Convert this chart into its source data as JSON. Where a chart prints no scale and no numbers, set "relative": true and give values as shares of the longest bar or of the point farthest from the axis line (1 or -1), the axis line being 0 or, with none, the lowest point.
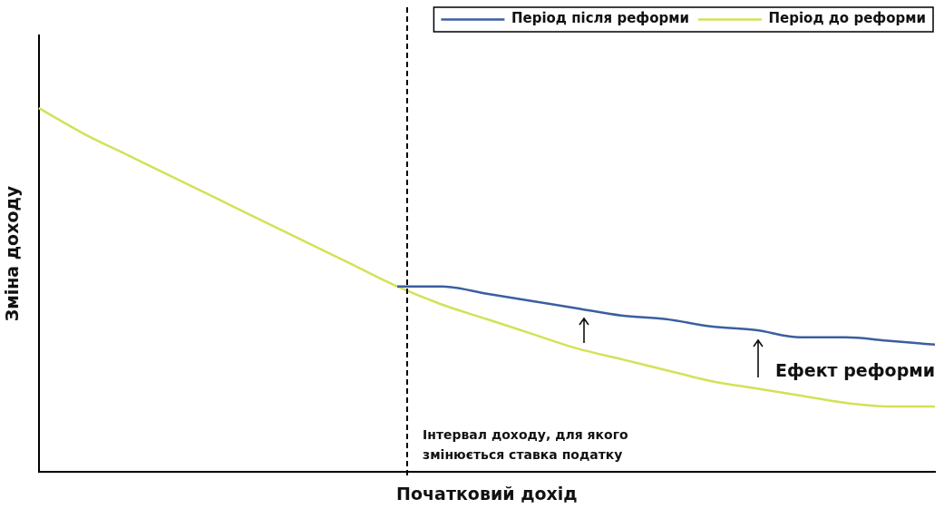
{
  "chart_data": {
    "type": "line",
    "relative": true,
    "xlabel": "Початковий дохід",
    "ylabel": "Зміна доходу",
    "categories": [
      null,
      null,
      null,
      null,
      null,
      null,
      null,
      null,
      null,
      null,
      null,
      null,
      null,
      null,
      null,
      null,
      null,
      null,
      null,
      null,
      null
    ],
    "series": [
      {
        "name": "Період після реформи",
        "color": "#3a5fa0",
        "values": [
          null,
          null,
          null,
          null,
          null,
          null,
          null,
          null,
          0.51,
          0.51,
          0.49,
          0.47,
          0.45,
          0.43,
          0.42,
          0.4,
          0.39,
          0.37,
          0.37,
          0.36,
          0.35
        ]
      },
      {
        "name": "Період до реформи",
        "color": "#d4e157",
        "values": [
          1.0,
          0.93,
          0.87,
          0.81,
          0.75,
          0.69,
          0.63,
          0.57,
          0.51,
          0.46,
          0.42,
          0.38,
          0.34,
          0.31,
          0.28,
          0.25,
          0.23,
          0.21,
          0.19,
          0.18,
          0.18
        ]
      }
    ],
    "annotations": [
      "Інтервал доходу, для якого змінюється ставка податку",
      "Ефект реформи"
    ],
    "legend": "top right",
    "grid": false,
    "marker": "none",
    "line_style": "solid"
  }
}
